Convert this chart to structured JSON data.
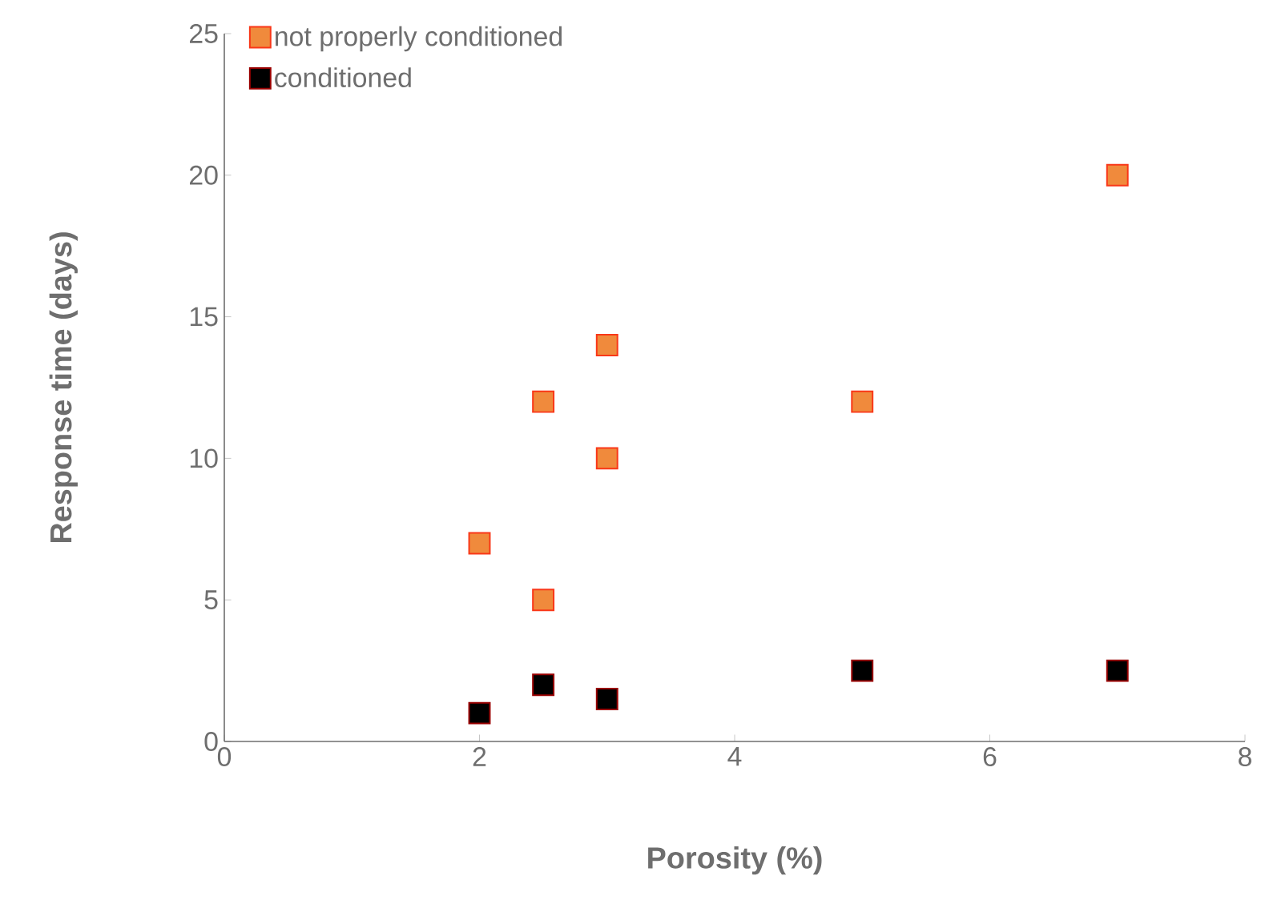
{
  "chart_data": {
    "type": "scatter",
    "xlabel": "Porosity (%)",
    "ylabel": "Response time (days)",
    "xlim": [
      0,
      8
    ],
    "ylim": [
      0,
      25
    ],
    "xticks": [
      0,
      2,
      4,
      6,
      8
    ],
    "yticks": [
      0,
      5,
      10,
      15,
      20,
      25
    ],
    "marker": "square",
    "legend": "top left",
    "grid": false,
    "series": [
      {
        "name": "not properly conditioned",
        "color": "#f08a3c",
        "x": [
          2,
          2.5,
          2.5,
          3,
          3,
          5,
          7
        ],
        "values": [
          7,
          12,
          5,
          14,
          10,
          12,
          20
        ]
      },
      {
        "name": "conditioned",
        "color": "#000000",
        "x": [
          2,
          2.5,
          3,
          5,
          7
        ],
        "values": [
          1,
          2,
          1.5,
          2.5,
          2.5
        ]
      }
    ]
  }
}
